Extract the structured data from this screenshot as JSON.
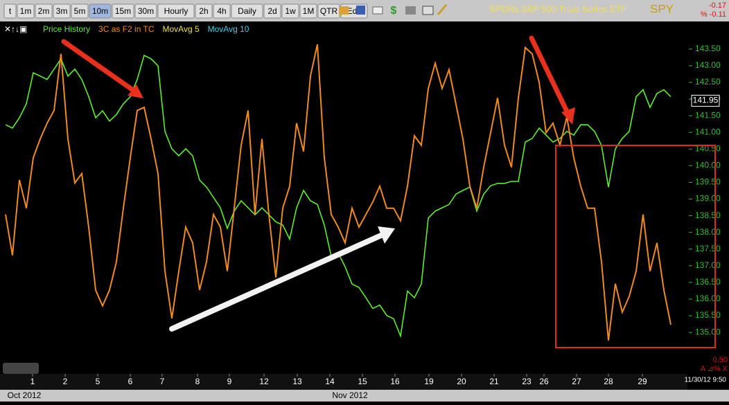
{
  "toolbar": {
    "buttons": [
      "t",
      "1m",
      "2m",
      "3m",
      "5m",
      "10m",
      "15m",
      "30m",
      "Hourly",
      "2h",
      "4h",
      "Daily",
      "2d",
      "1w",
      "1M",
      "QTR",
      "Edit"
    ],
    "active_index": 5
  },
  "header": {
    "title": "SPDRs S&P 500 Trust Series ETF",
    "symbol": "SPY",
    "change": "-0.17",
    "change_pct": "% -0.11"
  },
  "chart_data": {
    "type": "line",
    "x": [
      0,
      1,
      2,
      3,
      4,
      5,
      6,
      7,
      8,
      9,
      10,
      11,
      12,
      13,
      14,
      15,
      16,
      17,
      18,
      19,
      20,
      21,
      22,
      23,
      24,
      25,
      26,
      27,
      28,
      29,
      30,
      31,
      32,
      33,
      34,
      35,
      36,
      37,
      38,
      39,
      40,
      41,
      42,
      43,
      44,
      45,
      46,
      47,
      48,
      49,
      50,
      51,
      52,
      53,
      54,
      55,
      56,
      57,
      58,
      59,
      60,
      61,
      62,
      63,
      64,
      65,
      66,
      67,
      68,
      69,
      70,
      71,
      72,
      73,
      74,
      75,
      76,
      77,
      78,
      79,
      80,
      81,
      82,
      83,
      84,
      85,
      86,
      87,
      88,
      89,
      90,
      91,
      92,
      93,
      94,
      95,
      96
    ],
    "xlim": [
      -0.8,
      98.4
    ],
    "xticks": [
      {
        "value": 3.9,
        "label": "1"
      },
      {
        "value": 8.6,
        "label": "2"
      },
      {
        "value": 13.3,
        "label": "5"
      },
      {
        "value": 18,
        "label": "6"
      },
      {
        "value": 22.6,
        "label": "7"
      },
      {
        "value": 27.7,
        "label": "8"
      },
      {
        "value": 32.3,
        "label": "9"
      },
      {
        "value": 37.3,
        "label": "12"
      },
      {
        "value": 42.1,
        "label": "13"
      },
      {
        "value": 46.8,
        "label": "14"
      },
      {
        "value": 51.5,
        "label": "15"
      },
      {
        "value": 56.2,
        "label": "16"
      },
      {
        "value": 61.1,
        "label": "19"
      },
      {
        "value": 65.8,
        "label": "20"
      },
      {
        "value": 70.5,
        "label": "21"
      },
      {
        "value": 75.2,
        "label": "23"
      },
      {
        "value": 77.7,
        "label": "26"
      },
      {
        "value": 82.4,
        "label": "27"
      },
      {
        "value": 87,
        "label": "28"
      },
      {
        "value": 91.9,
        "label": "29"
      }
    ],
    "ylim": [
      134.38,
      143.83
    ],
    "yticks": [
      {
        "value": 135,
        "label": "135.00"
      },
      {
        "value": 135.5,
        "label": "135.50"
      },
      {
        "value": 136,
        "label": "136.00"
      },
      {
        "value": 136.5,
        "label": "136.50"
      },
      {
        "value": 137,
        "label": "137.00"
      },
      {
        "value": 137.5,
        "label": "137.50"
      },
      {
        "value": 138,
        "label": "138.00"
      },
      {
        "value": 138.5,
        "label": "138.50"
      },
      {
        "value": 139,
        "label": "139.00"
      },
      {
        "value": 139.5,
        "label": "139.50"
      },
      {
        "value": 140,
        "label": "140.00"
      },
      {
        "value": 140.5,
        "label": "140.50"
      },
      {
        "value": 141,
        "label": "141.00"
      },
      {
        "value": 141.5,
        "label": "141.50"
      },
      {
        "value": 142,
        "label": "142.00"
      },
      {
        "value": 142.5,
        "label": "142.50"
      },
      {
        "value": 143,
        "label": "143.00"
      },
      {
        "value": 143.5,
        "label": "143.50"
      }
    ],
    "y2lim": [
      0,
      100
    ],
    "series": [
      {
        "name": "Price History",
        "color": "#5cf02a",
        "values": [
          141.23,
          141.13,
          141.44,
          141.86,
          142.79,
          142.69,
          142.59,
          142.9,
          143.21,
          142.69,
          142.9,
          142.59,
          142.07,
          141.44,
          141.65,
          141.34,
          141.54,
          141.86,
          142.07,
          142.59,
          143.31,
          143.21,
          143.0,
          141.03,
          140.51,
          140.3,
          140.51,
          140.3,
          139.57,
          139.36,
          139.05,
          138.74,
          138.12,
          138.64,
          138.95,
          138.74,
          138.53,
          138.74,
          138.53,
          138.32,
          138.22,
          137.8,
          138.74,
          139.26,
          138.95,
          138.84,
          138.22,
          137.28,
          137.39,
          136.97,
          136.45,
          136.35,
          136.04,
          135.72,
          135.82,
          135.51,
          135.41,
          134.89,
          136.24,
          136.04,
          136.45,
          138.43,
          138.64,
          138.74,
          138.84,
          139.15,
          139.26,
          139.36,
          138.64,
          139.15,
          139.4,
          139.47,
          139.47,
          139.53,
          139.53,
          140.71,
          140.82,
          141.13,
          140.92,
          140.71,
          140.82,
          141.03,
          140.92,
          141.23,
          141.23,
          141.03,
          140.61,
          139.36,
          140.51,
          140.82,
          141.03,
          142.07,
          142.28,
          141.75,
          142.17,
          142.28,
          142.07
        ]
      },
      {
        "name": "3C as F2 in TC",
        "color": "#f08c1e",
        "axis": "y2",
        "values": [
          44,
          31,
          55,
          46,
          62,
          68,
          73,
          77,
          95,
          68,
          54,
          57,
          40,
          20,
          15,
          20,
          29,
          46,
          62,
          77,
          78,
          68,
          57,
          26,
          11,
          26,
          40,
          35,
          20,
          29,
          44,
          40,
          26,
          46,
          66,
          77,
          44,
          68,
          44,
          24,
          46,
          53,
          73,
          64,
          88,
          98,
          62,
          44,
          40,
          35,
          46,
          40,
          44,
          48,
          53,
          46,
          46,
          42,
          53,
          69,
          66,
          84,
          92,
          84,
          90,
          79,
          68,
          53,
          46,
          59,
          70,
          81,
          66,
          59,
          81,
          97,
          95,
          86,
          70,
          73,
          66,
          75,
          62,
          53,
          46,
          46,
          29,
          4,
          22,
          13,
          18,
          26,
          44,
          26,
          35,
          20,
          9
        ]
      }
    ],
    "overlays": [
      {
        "name": "MovAvg 5",
        "color": "#f0e050"
      },
      {
        "name": "MovAvg 10",
        "color": "#3fd0f0"
      }
    ],
    "last_price": 141.95,
    "months": [
      "Oct 2012",
      "Nov 2012"
    ],
    "timestamp": "11/30/12 9:50",
    "lower_value": "0.50",
    "lower_icons": "A ⊿% X"
  }
}
